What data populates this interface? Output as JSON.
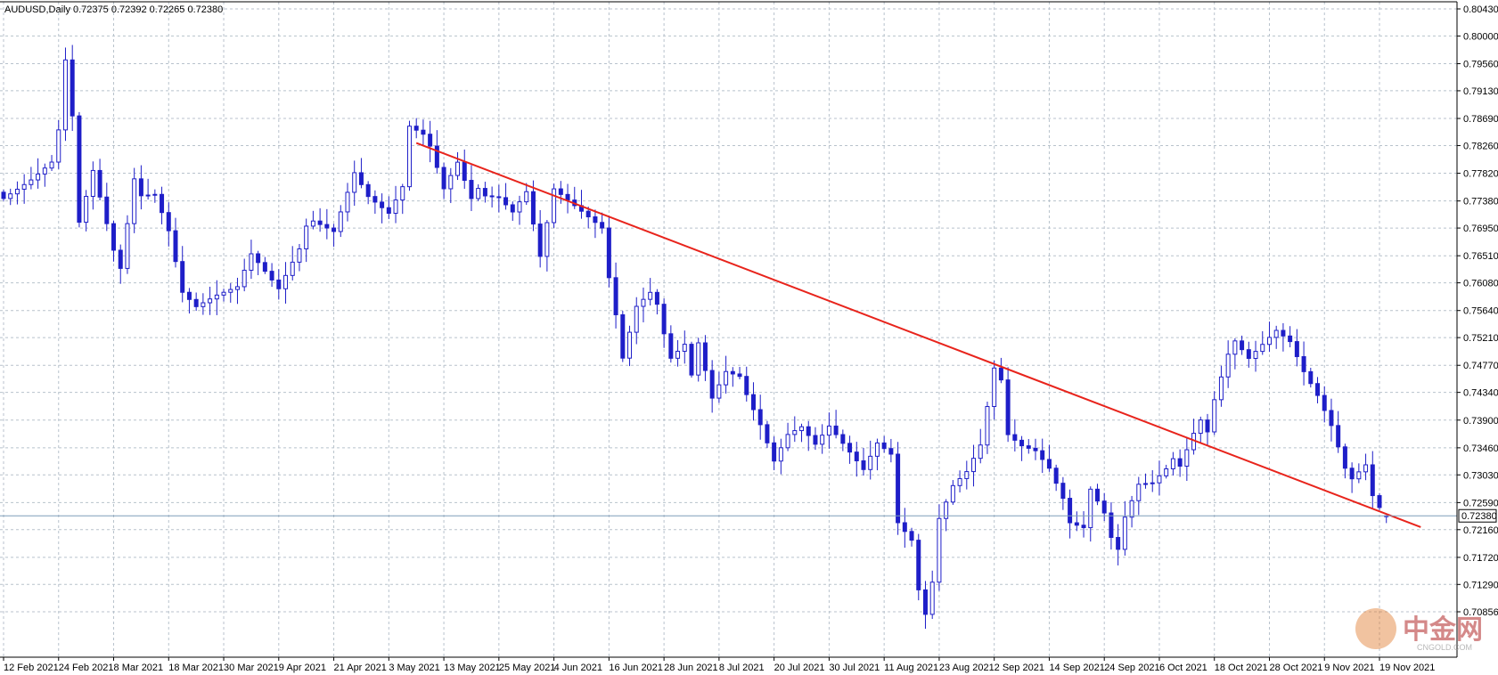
{
  "chart_title": "AUDUSD,Daily  0.72375 0.72392 0.72265 0.72380",
  "watermark": {
    "cn_text": "中金网",
    "en_text": "CNGOLD.COM"
  },
  "colors": {
    "background": "#ffffff",
    "grid": "#b8c2cc",
    "candle_body": "#1e1ec8",
    "candle_wick": "#1e1ec8",
    "trendline": "#e8241c",
    "current_price_line": "#7f9db9",
    "price_box_bg": "#ffffff",
    "axis_text": "#000000",
    "watermark": "#b22a2a"
  },
  "chart_data": {
    "type": "candlestick",
    "symbol": "AUDUSD",
    "timeframe": "Daily",
    "ohlc_header": {
      "open": 0.72375,
      "high": 0.72392,
      "low": 0.72265,
      "close": 0.7238
    },
    "current_price": 0.7238,
    "current_price_label": "0.72380",
    "ylim": [
      0.70856,
      0.8043
    ],
    "y_ticks": [
      "0.80430",
      "0.80000",
      "0.79560",
      "0.79130",
      "0.78690",
      "0.78260",
      "0.77820",
      "0.77380",
      "0.76950",
      "0.76510",
      "0.76080",
      "0.75640",
      "0.75210",
      "0.74770",
      "0.74340",
      "0.73900",
      "0.73460",
      "0.73030",
      "0.72590",
      "0.72160",
      "0.71720",
      "0.71290",
      "0.70856"
    ],
    "x_tick_labels": [
      "12 Feb 2021",
      "24 Feb 2021",
      "8 Mar 2021",
      "18 Mar 2021",
      "30 Mar 2021",
      "9 Apr 2021",
      "21 Apr 2021",
      "3 May 2021",
      "13 May 2021",
      "25 May 2021",
      "4 Jun 2021",
      "16 Jun 2021",
      "28 Jun 2021",
      "8 Jul 2021",
      "20 Jul 2021",
      "30 Jul 2021",
      "11 Aug 2021",
      "23 Aug 2021",
      "2 Sep 2021",
      "14 Sep 2021",
      "24 Sep 2021",
      "6 Oct 2021",
      "18 Oct 2021",
      "28 Oct 2021",
      "9 Nov 2021",
      "19 Nov 2021"
    ],
    "x_tick_bar_index": [
      0,
      8,
      16,
      24,
      32,
      40,
      48,
      56,
      64,
      72,
      80,
      88,
      96,
      104,
      112,
      120,
      128,
      136,
      144,
      152,
      160,
      168,
      176,
      184,
      192,
      200
    ],
    "anchors": [
      [
        0,
        0.775
      ],
      [
        4,
        0.7775
      ],
      [
        7,
        0.78
      ],
      [
        8,
        0.785
      ],
      [
        9,
        0.796
      ],
      [
        10,
        0.787
      ],
      [
        11,
        0.77
      ],
      [
        13,
        0.778
      ],
      [
        16,
        0.765
      ],
      [
        17,
        0.762
      ],
      [
        19,
        0.776
      ],
      [
        22,
        0.776
      ],
      [
        24,
        0.77
      ],
      [
        26,
        0.76
      ],
      [
        28,
        0.7575
      ],
      [
        31,
        0.759
      ],
      [
        34,
        0.76
      ],
      [
        36,
        0.765
      ],
      [
        40,
        0.759
      ],
      [
        43,
        0.765
      ],
      [
        45,
        0.772
      ],
      [
        48,
        0.77
      ],
      [
        51,
        0.779
      ],
      [
        53,
        0.775
      ],
      [
        56,
        0.772
      ],
      [
        58,
        0.776
      ],
      [
        59,
        0.7855
      ],
      [
        61,
        0.784
      ],
      [
        62,
        0.782
      ],
      [
        64,
        0.775
      ],
      [
        66,
        0.779
      ],
      [
        68,
        0.773
      ],
      [
        70,
        0.776
      ],
      [
        72,
        0.7755
      ],
      [
        74,
        0.773
      ],
      [
        76,
        0.776
      ],
      [
        78,
        0.7655
      ],
      [
        80,
        0.776
      ],
      [
        82,
        0.774
      ],
      [
        84,
        0.772
      ],
      [
        87,
        0.769
      ],
      [
        88,
        0.761
      ],
      [
        89,
        0.755
      ],
      [
        90,
        0.748
      ],
      [
        92,
        0.756
      ],
      [
        94,
        0.758
      ],
      [
        96,
        0.754
      ],
      [
        97,
        0.75
      ],
      [
        99,
        0.752
      ],
      [
        100,
        0.747
      ],
      [
        101,
        0.752
      ],
      [
        103,
        0.743
      ],
      [
        105,
        0.747
      ],
      [
        107,
        0.746
      ],
      [
        108,
        0.743
      ],
      [
        110,
        0.738
      ],
      [
        112,
        0.732
      ],
      [
        114,
        0.736
      ],
      [
        116,
        0.737
      ],
      [
        118,
        0.734
      ],
      [
        121,
        0.738
      ],
      [
        123,
        0.735
      ],
      [
        125,
        0.732
      ],
      [
        127,
        0.736
      ],
      [
        129,
        0.734
      ],
      [
        130,
        0.723
      ],
      [
        132,
        0.72
      ],
      [
        133,
        0.712
      ],
      [
        134,
        0.708
      ],
      [
        135,
        0.713
      ],
      [
        136,
        0.723
      ],
      [
        138,
        0.728
      ],
      [
        140,
        0.73
      ],
      [
        142,
        0.734
      ],
      [
        143,
        0.74
      ],
      [
        144,
        0.746
      ],
      [
        145,
        0.744
      ],
      [
        146,
        0.738
      ],
      [
        148,
        0.736
      ],
      [
        150,
        0.735
      ],
      [
        152,
        0.732
      ],
      [
        154,
        0.727
      ],
      [
        155,
        0.723
      ],
      [
        157,
        0.722
      ],
      [
        158,
        0.728
      ],
      [
        160,
        0.724
      ],
      [
        161,
        0.72
      ],
      [
        162,
        0.718
      ],
      [
        163,
        0.723
      ],
      [
        165,
        0.728
      ],
      [
        167,
        0.728
      ],
      [
        169,
        0.73
      ],
      [
        171,
        0.733
      ],
      [
        173,
        0.738
      ],
      [
        174,
        0.74
      ],
      [
        175,
        0.738
      ],
      [
        176,
        0.743
      ],
      [
        178,
        0.75
      ],
      [
        179,
        0.752
      ],
      [
        181,
        0.749
      ],
      [
        183,
        0.751
      ],
      [
        185,
        0.753
      ],
      [
        187,
        0.751
      ],
      [
        189,
        0.746
      ],
      [
        191,
        0.742
      ],
      [
        193,
        0.737
      ],
      [
        195,
        0.73
      ],
      [
        196,
        0.731
      ],
      [
        198,
        0.733
      ],
      [
        199,
        0.728
      ],
      [
        200,
        0.726
      ],
      [
        201,
        0.7238
      ]
    ],
    "trendline": {
      "from": {
        "bar": 60,
        "price": 0.783
      },
      "to": {
        "bar": 206,
        "price": 0.722
      }
    }
  }
}
